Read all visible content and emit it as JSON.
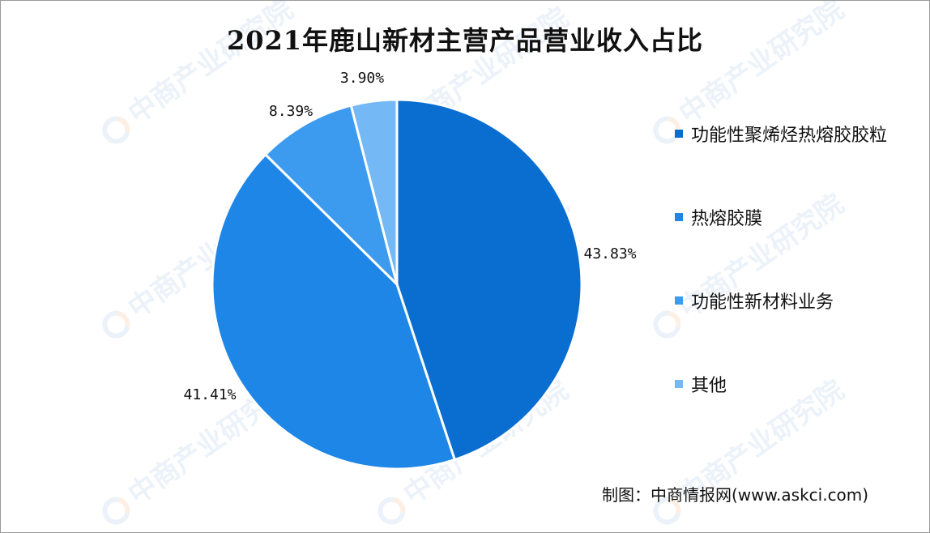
{
  "chart_data": {
    "type": "pie",
    "title": "2021年鹿山新材主营产品营业收入占比",
    "categories": [
      "功能性聚烯烃热熔胶胶粒",
      "热熔胶膜",
      "功能性新材料业务",
      "其他"
    ],
    "values": [
      43.83,
      41.41,
      8.39,
      3.9
    ],
    "value_labels": [
      "43.83%",
      "41.41%",
      "8.39%",
      "3.90%"
    ],
    "colors": [
      "#0A6ED1",
      "#1E86E6",
      "#3D9BEF",
      "#74B8F5"
    ],
    "start_angle": "12 o'clock",
    "direction": "clockwise",
    "legend_position": "right"
  },
  "source": "制图：中商情报网(www.askci.com)",
  "watermark": "中商产业研究院"
}
